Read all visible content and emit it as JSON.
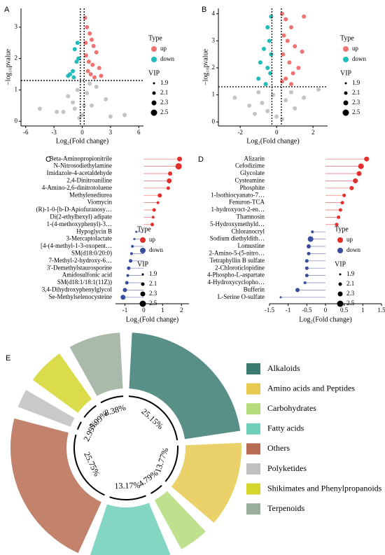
{
  "chart_data": [
    {
      "type": "scatter",
      "panel": "A",
      "xlabel": "Log₂(Fold change)",
      "ylabel": "−log₁₀pvalue",
      "xlim": [
        -6.5,
        6.5
      ],
      "ylim": [
        -0.15,
        3.6
      ],
      "xticks": [
        -6,
        -3,
        0,
        3,
        6
      ],
      "yticks": [
        0,
        1,
        2,
        3
      ],
      "thresholds": {
        "x": [
          -0.2,
          0.2
        ],
        "y": 1.3
      },
      "legend_title": "Type",
      "series": [
        {
          "color": "#c4c4c4",
          "x": [
            -4.5,
            -2.7,
            -1.5,
            -1,
            -0.5,
            0,
            0.5,
            1,
            1.5,
            2.5,
            -2,
            0.2,
            -0.3,
            0.8,
            -0.8,
            4.5,
            3
          ],
          "values": [
            0.4,
            0.3,
            0.8,
            0.6,
            1.0,
            0.2,
            0.9,
            0.5,
            1.1,
            0.7,
            0.3,
            0.5,
            0.1,
            1.2,
            0.4,
            0.2,
            0.15
          ]
        },
        {
          "name": "up",
          "color": "#f07373",
          "x": [
            0.3,
            0.5,
            0.8,
            1.0,
            1.2,
            1.5,
            0.4,
            0.7,
            1.1,
            1.8,
            0.6,
            0.9,
            1.3,
            2.0,
            0.35
          ],
          "values": [
            3.3,
            3.0,
            2.8,
            2.6,
            2.4,
            2.2,
            2.1,
            1.9,
            1.8,
            1.7,
            1.6,
            1.5,
            1.4,
            1.45,
            2.5
          ]
        },
        {
          "name": "down",
          "color": "#1fbcbc",
          "x": [
            -0.5,
            -0.8,
            -1.0,
            -1.3,
            -0.6,
            -0.9,
            -1.5,
            -0.4
          ],
          "values": [
            2.5,
            2.3,
            1.6,
            1.5,
            1.9,
            1.4,
            1.45,
            2.0
          ]
        }
      ],
      "size_legend": {
        "title": "VIP",
        "values": [
          1.9,
          2.1,
          2.3,
          2.5
        ]
      }
    },
    {
      "type": "scatter",
      "panel": "B",
      "xlabel": "Log₂(Fold change)",
      "ylabel": "−log₁₀pvalue",
      "xlim": [
        -3.2,
        2.8
      ],
      "ylim": [
        -0.15,
        4.2
      ],
      "xticks": [
        -2,
        0,
        2
      ],
      "yticks": [
        0,
        1,
        2,
        3,
        4
      ],
      "thresholds": {
        "x": [
          -0.26,
          0.26
        ],
        "y": 1.3
      },
      "legend_title": "Type",
      "series": [
        {
          "color": "#c4c4c4",
          "x": [
            -2.3,
            -1.5,
            -1,
            -0.5,
            0,
            0.5,
            1,
            1.5,
            2.3,
            -0.2,
            0.3,
            -1.2,
            0.8,
            -0.8
          ],
          "values": [
            0.9,
            0.6,
            1.1,
            0.4,
            0.2,
            0.8,
            0.5,
            0.9,
            1.2,
            1.0,
            0.1,
            0.3,
            1.1,
            0.7
          ]
        },
        {
          "name": "up",
          "color": "#f07373",
          "x": [
            0.3,
            0.5,
            0.8,
            0.4,
            0.6,
            1.0,
            1.4,
            0.35,
            0.7,
            1.2,
            0.9,
            0.5,
            0.3,
            1.5,
            0.8
          ],
          "values": [
            4.0,
            3.8,
            3.5,
            3.2,
            3.0,
            2.8,
            2.6,
            2.5,
            2.2,
            2.0,
            1.8,
            1.6,
            1.5,
            3.9,
            1.4
          ]
        },
        {
          "name": "down",
          "color": "#1fbcbc",
          "x": [
            -0.3,
            -0.5,
            -0.4,
            -0.7,
            -0.3,
            -0.9,
            -0.5,
            -0.35,
            -1.0,
            -0.6
          ],
          "values": [
            3.9,
            3.5,
            3.0,
            2.7,
            2.5,
            2.2,
            2.0,
            1.8,
            1.6,
            1.4
          ]
        }
      ],
      "size_legend": {
        "title": "VIP",
        "values": [
          1.9,
          2.1,
          2.3,
          2.5
        ]
      }
    },
    {
      "type": "lollipop",
      "panel": "C",
      "xlabel": "Log₂(Fold change)",
      "xlim": [
        -1.5,
        2.4
      ],
      "xticks": [
        -1,
        0,
        1,
        2
      ],
      "categories": [
        "Beta-Aminopropionitrile",
        "N-Nitrosodiethylamine",
        "Imidazole-4-acetaldehyde",
        "2,4-Dinitroaniline",
        "4-Amino-2,6-dinitrotoluene",
        "Methylenediurea",
        "Viomycin",
        "(R)-1-0-[b-D-Apiofuranosy…",
        "Di(2-ethylhexyl) adipate",
        "1-(4-methoxyphenyl)-3…",
        "Hypoglycin B",
        "3-Mercaptolactate",
        "[4-(4-methyl-1-3-oxopent…",
        "SM(d18:0/20:0)",
        "7-Methyl-2-hydroxy-6…",
        "3'-Demethylstaurosporine",
        "Amidosulfonic acid",
        "SM(d18:1/18:1(11Z))",
        "3,4-Dihydroxyphenylglycol",
        "Se-Methylselenocysteine"
      ],
      "legend_title": "Type",
      "series": [
        {
          "name": "up",
          "color": "#e3302c",
          "values": [
            1.9,
            1.85,
            1.4,
            1.35,
            1.3,
            0.85,
            0.75,
            0.55,
            0.5,
            0.45,
            null,
            null,
            null,
            null,
            null,
            null,
            null,
            null,
            null,
            null
          ]
        },
        {
          "name": "down",
          "color": "#3a4c9c",
          "values": [
            null,
            null,
            null,
            null,
            null,
            null,
            null,
            null,
            null,
            null,
            -0.4,
            -0.5,
            -0.6,
            -0.65,
            -0.7,
            -0.8,
            -0.85,
            -0.9,
            -1.0,
            -1.1
          ]
        }
      ],
      "vip": [
        2.3,
        2.5,
        2.2,
        2.3,
        2.1,
        2.2,
        2.0,
        2.1,
        2.0,
        2.1,
        1.9,
        1.9,
        2.0,
        2.0,
        2.1,
        2.1,
        2.0,
        2.1,
        2.2,
        2.3
      ],
      "size_legend": {
        "title": "VIP",
        "values": [
          1.9,
          2.1,
          2.3,
          2.5
        ]
      }
    },
    {
      "type": "lollipop",
      "panel": "D",
      "xlabel": "Log₂(Fold change)",
      "xlim": [
        -1.5,
        1.5
      ],
      "xticks": [
        -1.5,
        -1,
        -0.5,
        0,
        0.5,
        1,
        1.5
      ],
      "categories": [
        "Alizarin",
        "Cefodizime",
        "Glycolate",
        "Cysteamine",
        "Phosphite",
        "1-Isothiocyanato-7…",
        "Fenuron-TCA",
        "1-hydroxyoct-2-en…",
        "Thamnosin",
        "5-Hydroxymethyld…",
        "Chloranocryl",
        "Sodium diethyldith…",
        "Lomustine",
        "2-Amino-5-(5-nitro…",
        "Tetraphyllin B sulfate",
        "2-Chloroticlopidine",
        "4-Phospho-L-aspartate",
        "4-Hydroxycyclopho…",
        "Bufferin",
        "L-Serine O-sulfate"
      ],
      "legend_title": "Type",
      "series": [
        {
          "name": "up",
          "color": "#e3302c",
          "values": [
            1.1,
            0.95,
            0.9,
            0.8,
            0.7,
            0.5,
            0.45,
            0.4,
            0.35,
            0.3,
            null,
            null,
            null,
            null,
            null,
            null,
            null,
            null,
            null,
            null
          ]
        },
        {
          "name": "down",
          "color": "#3a4c9c",
          "values": [
            null,
            null,
            null,
            null,
            null,
            null,
            null,
            null,
            null,
            null,
            -0.35,
            -0.4,
            -0.45,
            -0.45,
            -0.5,
            -0.5,
            -0.5,
            -0.55,
            -0.75,
            -1.2
          ]
        }
      ],
      "vip": [
        2.3,
        2.4,
        2.3,
        2.3,
        2.2,
        2.1,
        2.1,
        2.1,
        2.1,
        2.1,
        2.0,
        2.4,
        2.2,
        2.1,
        2.1,
        2.1,
        2.1,
        2.0,
        2.2,
        1.9
      ],
      "size_legend": {
        "title": "VIP",
        "values": [
          1.9,
          2.1,
          2.3,
          2.5
        ]
      }
    },
    {
      "type": "polar",
      "panel": "E",
      "categories": [
        "Alkaloids",
        "Amino acids and Peptides",
        "Carbohydrates",
        "Fatty acids",
        "Others",
        "Polyketides",
        "Shikimates and Phenylpropanoids",
        "Terpenoids"
      ],
      "values": [
        25.15,
        13.77,
        4.79,
        13.17,
        25.75,
        2.99,
        5.99,
        8.38
      ],
      "value_labels": [
        "25.15%",
        "13.77%",
        "4.79%",
        "13.17%",
        "25.75%",
        "2.99%",
        "5.99%",
        "8.38%"
      ],
      "colors": [
        "#3b7c72",
        "#e8c94f",
        "#b4dc7a",
        "#6fcfb8",
        "#b86c52",
        "#c0c0c0",
        "#d5d62c",
        "#9aae9c"
      ]
    }
  ]
}
